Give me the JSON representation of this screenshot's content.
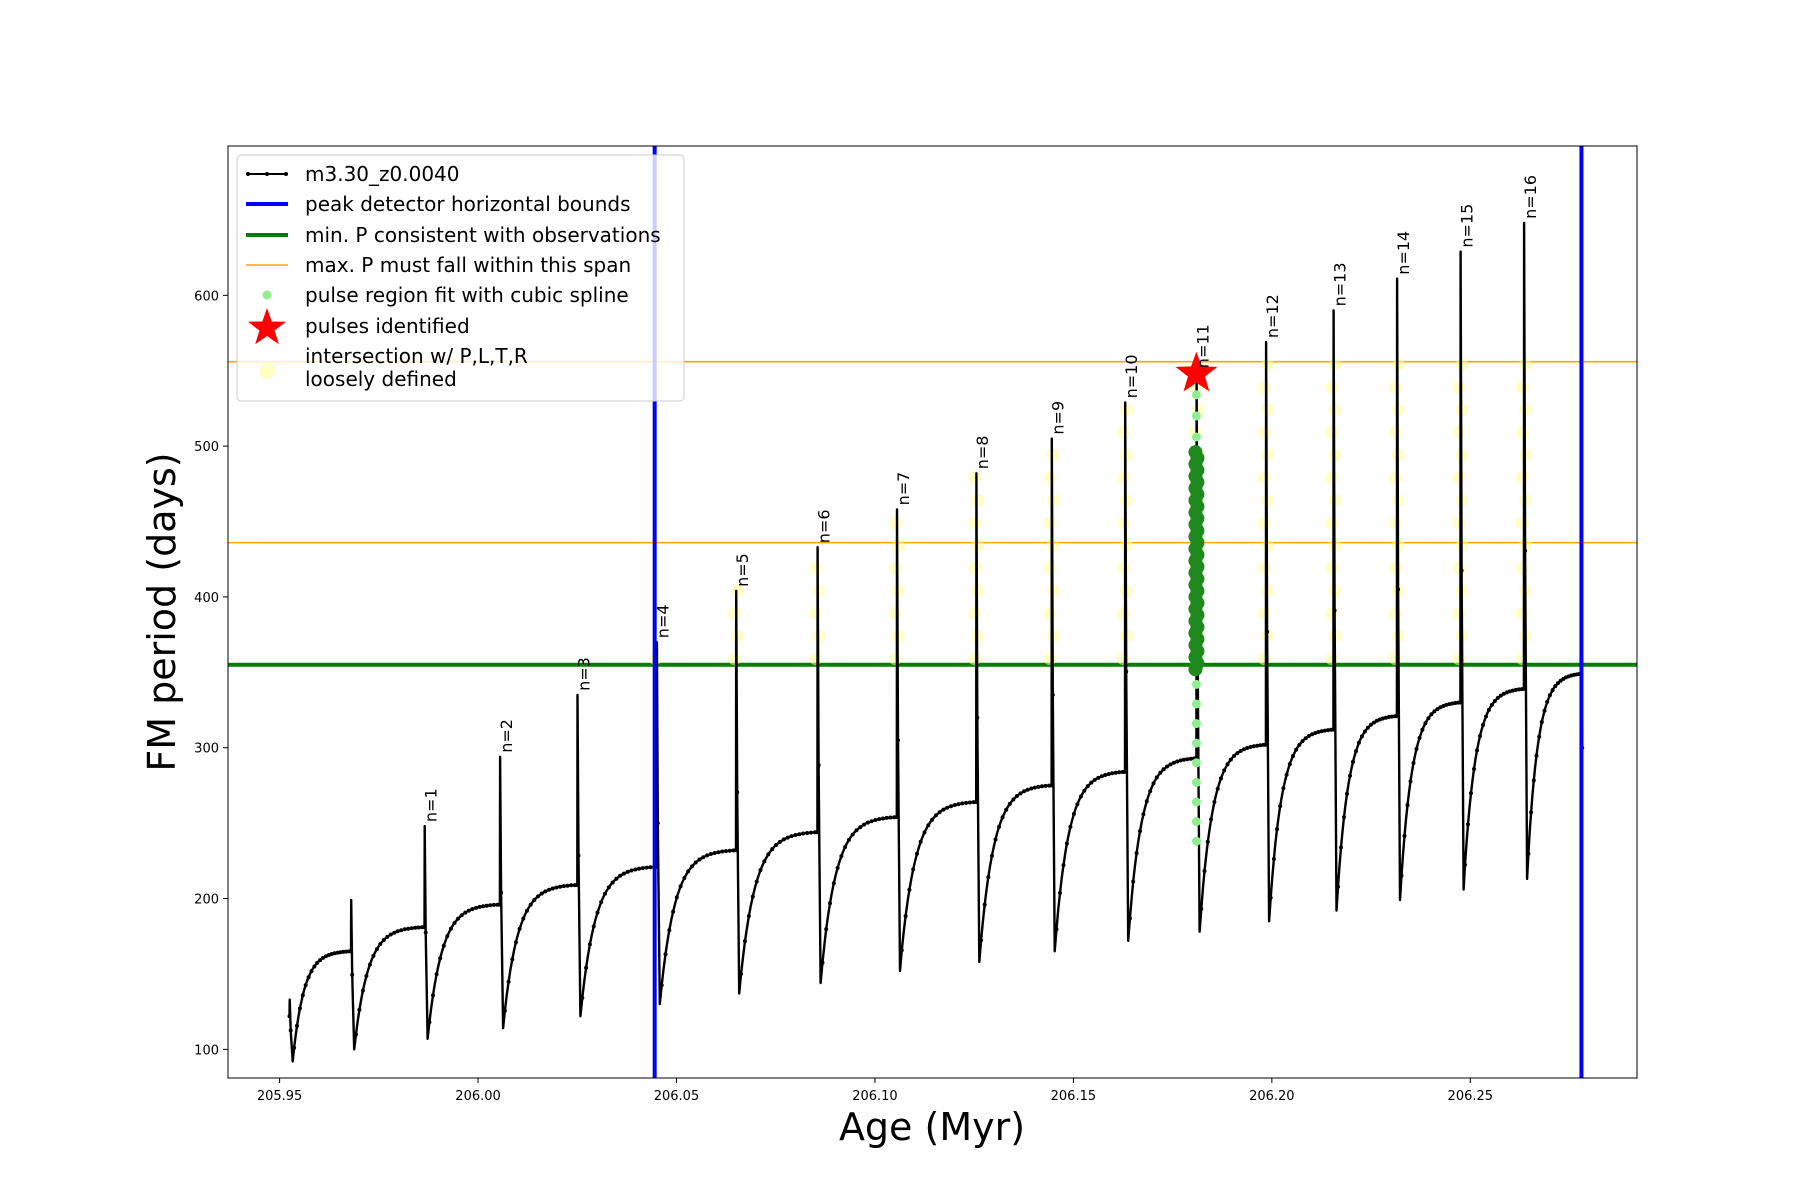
{
  "chart_data": {
    "type": "line",
    "xlabel": "Age (Myr)",
    "ylabel": "FM period (days)",
    "xlim": [
      205.937,
      206.292
    ],
    "ylim": [
      81,
      699
    ],
    "x_ticks": [
      {
        "value": 205.95,
        "label": "205.95"
      },
      {
        "value": 206.0,
        "label": "206.00"
      },
      {
        "value": 206.05,
        "label": "206.05"
      },
      {
        "value": 206.1,
        "label": "206.10"
      },
      {
        "value": 206.15,
        "label": "206.15"
      },
      {
        "value": 206.2,
        "label": "206.20"
      },
      {
        "value": 206.25,
        "label": "206.25"
      }
    ],
    "y_ticks": [
      {
        "value": 100,
        "label": "100"
      },
      {
        "value": 200,
        "label": "200"
      },
      {
        "value": 300,
        "label": "300"
      },
      {
        "value": 400,
        "label": "400"
      },
      {
        "value": 500,
        "label": "500"
      },
      {
        "value": 600,
        "label": "600"
      }
    ],
    "grid": false,
    "legend_position": "top-left",
    "legend": [
      {
        "label": "m3.30_z0.0040",
        "kind": "line-marker",
        "color": "#000000"
      },
      {
        "label": "peak detector horizontal bounds",
        "kind": "line",
        "color": "#0000ff"
      },
      {
        "label": "min. P consistent with observations",
        "kind": "line",
        "color": "#008000"
      },
      {
        "label": "max. P must fall within this span",
        "kind": "thin-line",
        "color": "#ffa500"
      },
      {
        "label": "pulse region fit with cubic spline",
        "kind": "dot",
        "color": "#90ee90"
      },
      {
        "label": "pulses identified",
        "kind": "star",
        "color": "#ff0000"
      },
      {
        "label": "intersection w/ P,L,T,R",
        "label2": "loosely defined",
        "kind": "big-dot",
        "color": "#ffff99"
      }
    ],
    "vertical_lines": [
      {
        "x": 206.0445,
        "color": "#0000ff",
        "role": "peak detector horizontal bounds"
      },
      {
        "x": 206.278,
        "color": "#0000ff",
        "role": "peak detector horizontal bounds"
      }
    ],
    "horizontal_lines": [
      {
        "y": 355,
        "color": "#008000",
        "role": "min. P consistent with observations"
      },
      {
        "y": 436,
        "color": "#ffa500",
        "role": "max. P must fall within this span"
      },
      {
        "y": 556,
        "color": "#ffa500",
        "role": "max. P must fall within this span"
      }
    ],
    "series_cycles": [
      {
        "x_start": 205.9525,
        "x_end": 205.968,
        "end_plateau": 165,
        "peak": 133,
        "dip": 92
      },
      {
        "x_start": 205.968,
        "x_end": 205.9865,
        "end_plateau": 181,
        "peak": 199,
        "dip": 100
      },
      {
        "x_start": 205.9865,
        "x_end": 206.0055,
        "end_plateau": 196,
        "peak": 248,
        "dip": 107
      },
      {
        "x_start": 206.0055,
        "x_end": 206.025,
        "end_plateau": 209,
        "peak": 294,
        "dip": 114
      },
      {
        "x_start": 206.025,
        "x_end": 206.045,
        "end_plateau": 221,
        "peak": 335,
        "dip": 122
      },
      {
        "x_start": 206.045,
        "x_end": 206.065,
        "end_plateau": 232,
        "peak": 370,
        "dip": 130
      },
      {
        "x_start": 206.065,
        "x_end": 206.0855,
        "end_plateau": 244,
        "peak": 404,
        "dip": 137
      },
      {
        "x_start": 206.0855,
        "x_end": 206.1055,
        "end_plateau": 254,
        "peak": 433,
        "dip": 144
      },
      {
        "x_start": 206.1055,
        "x_end": 206.1255,
        "end_plateau": 264,
        "peak": 458,
        "dip": 152
      },
      {
        "x_start": 206.1255,
        "x_end": 206.1445,
        "end_plateau": 275,
        "peak": 482,
        "dip": 158
      },
      {
        "x_start": 206.1445,
        "x_end": 206.163,
        "end_plateau": 284,
        "peak": 505,
        "dip": 165
      },
      {
        "x_start": 206.163,
        "x_end": 206.181,
        "end_plateau": 293,
        "peak": 529,
        "dip": 172
      },
      {
        "x_start": 206.181,
        "x_end": 206.1985,
        "end_plateau": 302,
        "peak": 549,
        "dip": 178
      },
      {
        "x_start": 206.1985,
        "x_end": 206.2155,
        "end_plateau": 312,
        "peak": 569,
        "dip": 185
      },
      {
        "x_start": 206.2155,
        "x_end": 206.2315,
        "end_plateau": 321,
        "peak": 590,
        "dip": 192
      },
      {
        "x_start": 206.2315,
        "x_end": 206.2475,
        "end_plateau": 330,
        "peak": 611,
        "dip": 199
      },
      {
        "x_start": 206.2475,
        "x_end": 206.2635,
        "end_plateau": 339,
        "peak": 629,
        "dip": 206
      },
      {
        "x_start": 206.2635,
        "x_end": 206.278,
        "end_plateau": 349,
        "peak": 648,
        "dip": 213
      }
    ],
    "pulses": [
      {
        "label": "n=1",
        "x": 205.9865,
        "peak": 248
      },
      {
        "label": "n=2",
        "x": 206.0055,
        "peak": 294
      },
      {
        "label": "n=3",
        "x": 206.025,
        "peak": 335
      },
      {
        "label": "n=4",
        "x": 206.045,
        "peak": 370
      },
      {
        "label": "n=5",
        "x": 206.065,
        "peak": 404
      },
      {
        "label": "n=6",
        "x": 206.0855,
        "peak": 433
      },
      {
        "label": "n=7",
        "x": 206.1055,
        "peak": 458
      },
      {
        "label": "n=8",
        "x": 206.1255,
        "peak": 482
      },
      {
        "label": "n=9",
        "x": 206.1445,
        "peak": 505
      },
      {
        "label": "n=10",
        "x": 206.163,
        "peak": 529
      },
      {
        "label": "n=11",
        "x": 206.181,
        "peak": 549
      },
      {
        "label": "n=12",
        "x": 206.1985,
        "peak": 569
      },
      {
        "label": "n=13",
        "x": 206.2155,
        "peak": 590
      },
      {
        "label": "n=14",
        "x": 206.2315,
        "peak": 611
      },
      {
        "label": "n=15",
        "x": 206.2475,
        "peak": 629
      },
      {
        "label": "n=16",
        "x": 206.2635,
        "peak": 648
      }
    ],
    "spline_fit": {
      "x": 206.181,
      "y_range": [
        238,
        550
      ],
      "dense_range": [
        352,
        498
      ]
    },
    "identified_pulse_star": {
      "x": 206.181,
      "y": 548
    },
    "loosely_defined_range": [
      355,
      556
    ]
  }
}
